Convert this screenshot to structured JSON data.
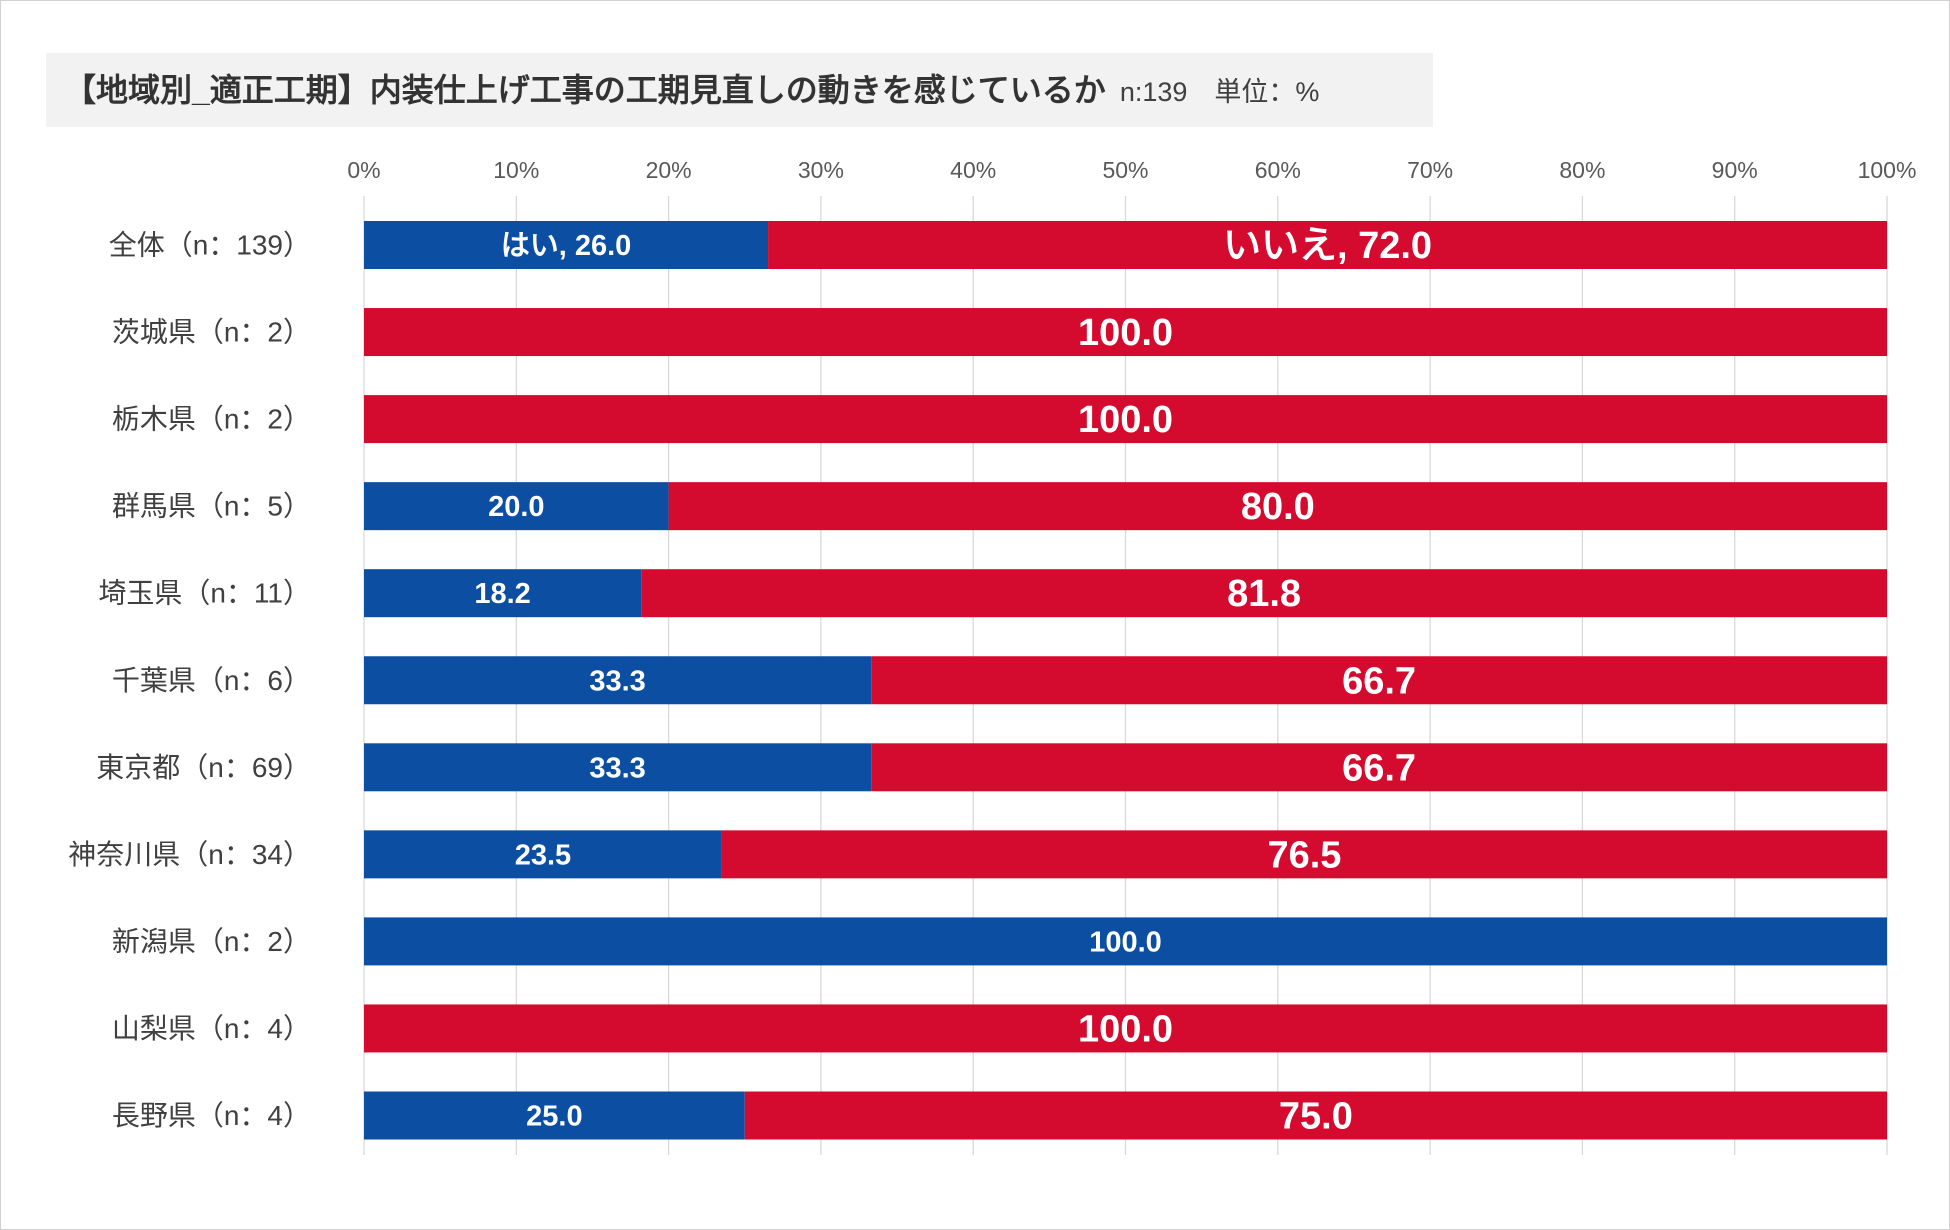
{
  "chart_data": {
    "type": "bar",
    "orientation": "horizontal",
    "stacking": "percent",
    "title": "【地域別_適正工期】内装仕上げ工事の工期見直しの動きを感じているか",
    "subtitle": "n:139　単位：%",
    "categories": [
      "全体（n：139）",
      "茨城県（n：2）",
      "栃木県（n：2）",
      "群馬県（n：5）",
      "埼玉県（n：11）",
      "千葉県（n：6）",
      "東京都（n：69）",
      "神奈川県（n：34）",
      "新潟県（n：2）",
      "山梨県（n：4）",
      "長野県（n：4）"
    ],
    "x_ticks": [
      "0%",
      "10%",
      "20%",
      "30%",
      "40%",
      "50%",
      "60%",
      "70%",
      "80%",
      "90%",
      "100%"
    ],
    "xlim": [
      0,
      100
    ],
    "grid": "vertical",
    "legend": "none",
    "series": [
      {
        "name": "はい",
        "color": "#0B4EA2",
        "values": [
          26.0,
          null,
          null,
          20.0,
          18.2,
          33.3,
          33.3,
          23.5,
          100.0,
          null,
          25.0
        ],
        "data_labels": [
          "はい, 26.0",
          null,
          null,
          "20.0",
          "18.2",
          "33.3",
          "33.3",
          "23.5",
          "100.0",
          null,
          "25.0"
        ]
      },
      {
        "name": "いいえ",
        "color": "#D50A2F",
        "values": [
          72.0,
          100.0,
          100.0,
          80.0,
          81.8,
          66.7,
          66.7,
          76.5,
          null,
          100.0,
          75.0
        ],
        "data_labels": [
          "いいえ, 72.0",
          "100.0",
          "100.0",
          "80.0",
          "81.8",
          "66.7",
          "66.7",
          "76.5",
          null,
          "100.0",
          "75.0"
        ]
      }
    ]
  },
  "colors": {
    "background": "#FFFFFF",
    "title_box": "#F2F2F2",
    "grid": "#D9D9D9",
    "border": "#D0D0D0"
  }
}
